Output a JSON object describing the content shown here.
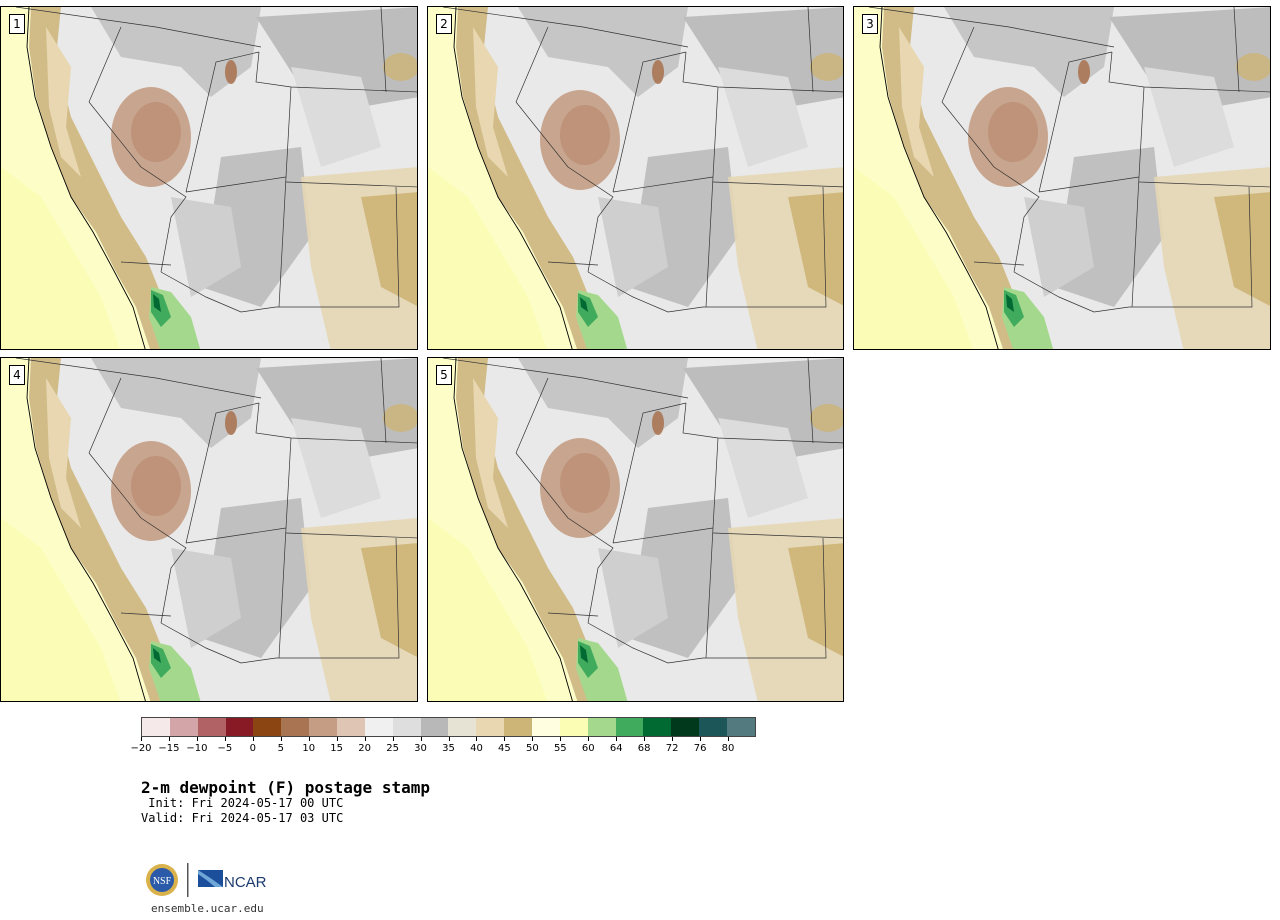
{
  "panels": [
    {
      "label": "1"
    },
    {
      "label": "2"
    },
    {
      "label": "3"
    },
    {
      "label": "4"
    },
    {
      "label": "5"
    }
  ],
  "colorbar": {
    "colors": [
      "#f5e9ea",
      "#d4a5a8",
      "#b06265",
      "#871a24",
      "#8b4513",
      "#a87452",
      "#c49d84",
      "#dfc5b4",
      "#f0f0f0",
      "#dedede",
      "#b8b8b8",
      "#e6e3d4",
      "#e8d7b0",
      "#cdb477",
      "#fffee0",
      "#fbfdb4",
      "#a4d98d",
      "#41ab5d",
      "#006a32",
      "#00391c",
      "#1c5658",
      "#527a7f"
    ],
    "tick_labels": [
      "−20",
      "−15",
      "−10",
      "−5",
      "0",
      "5",
      "10",
      "15",
      "20",
      "25",
      "30",
      "35",
      "40",
      "45",
      "50",
      "55",
      "60",
      "64",
      "68",
      "72",
      "76",
      "80"
    ]
  },
  "title": "2-m dewpoint (F) postage stamp",
  "init": " Init: Fri 2024-05-17 00 UTC",
  "valid": "Valid: Fri 2024-05-17 03 UTC",
  "logos": {
    "nsf": "NSF",
    "ncar": "NCAR"
  },
  "website": "ensemble.ucar.edu"
}
